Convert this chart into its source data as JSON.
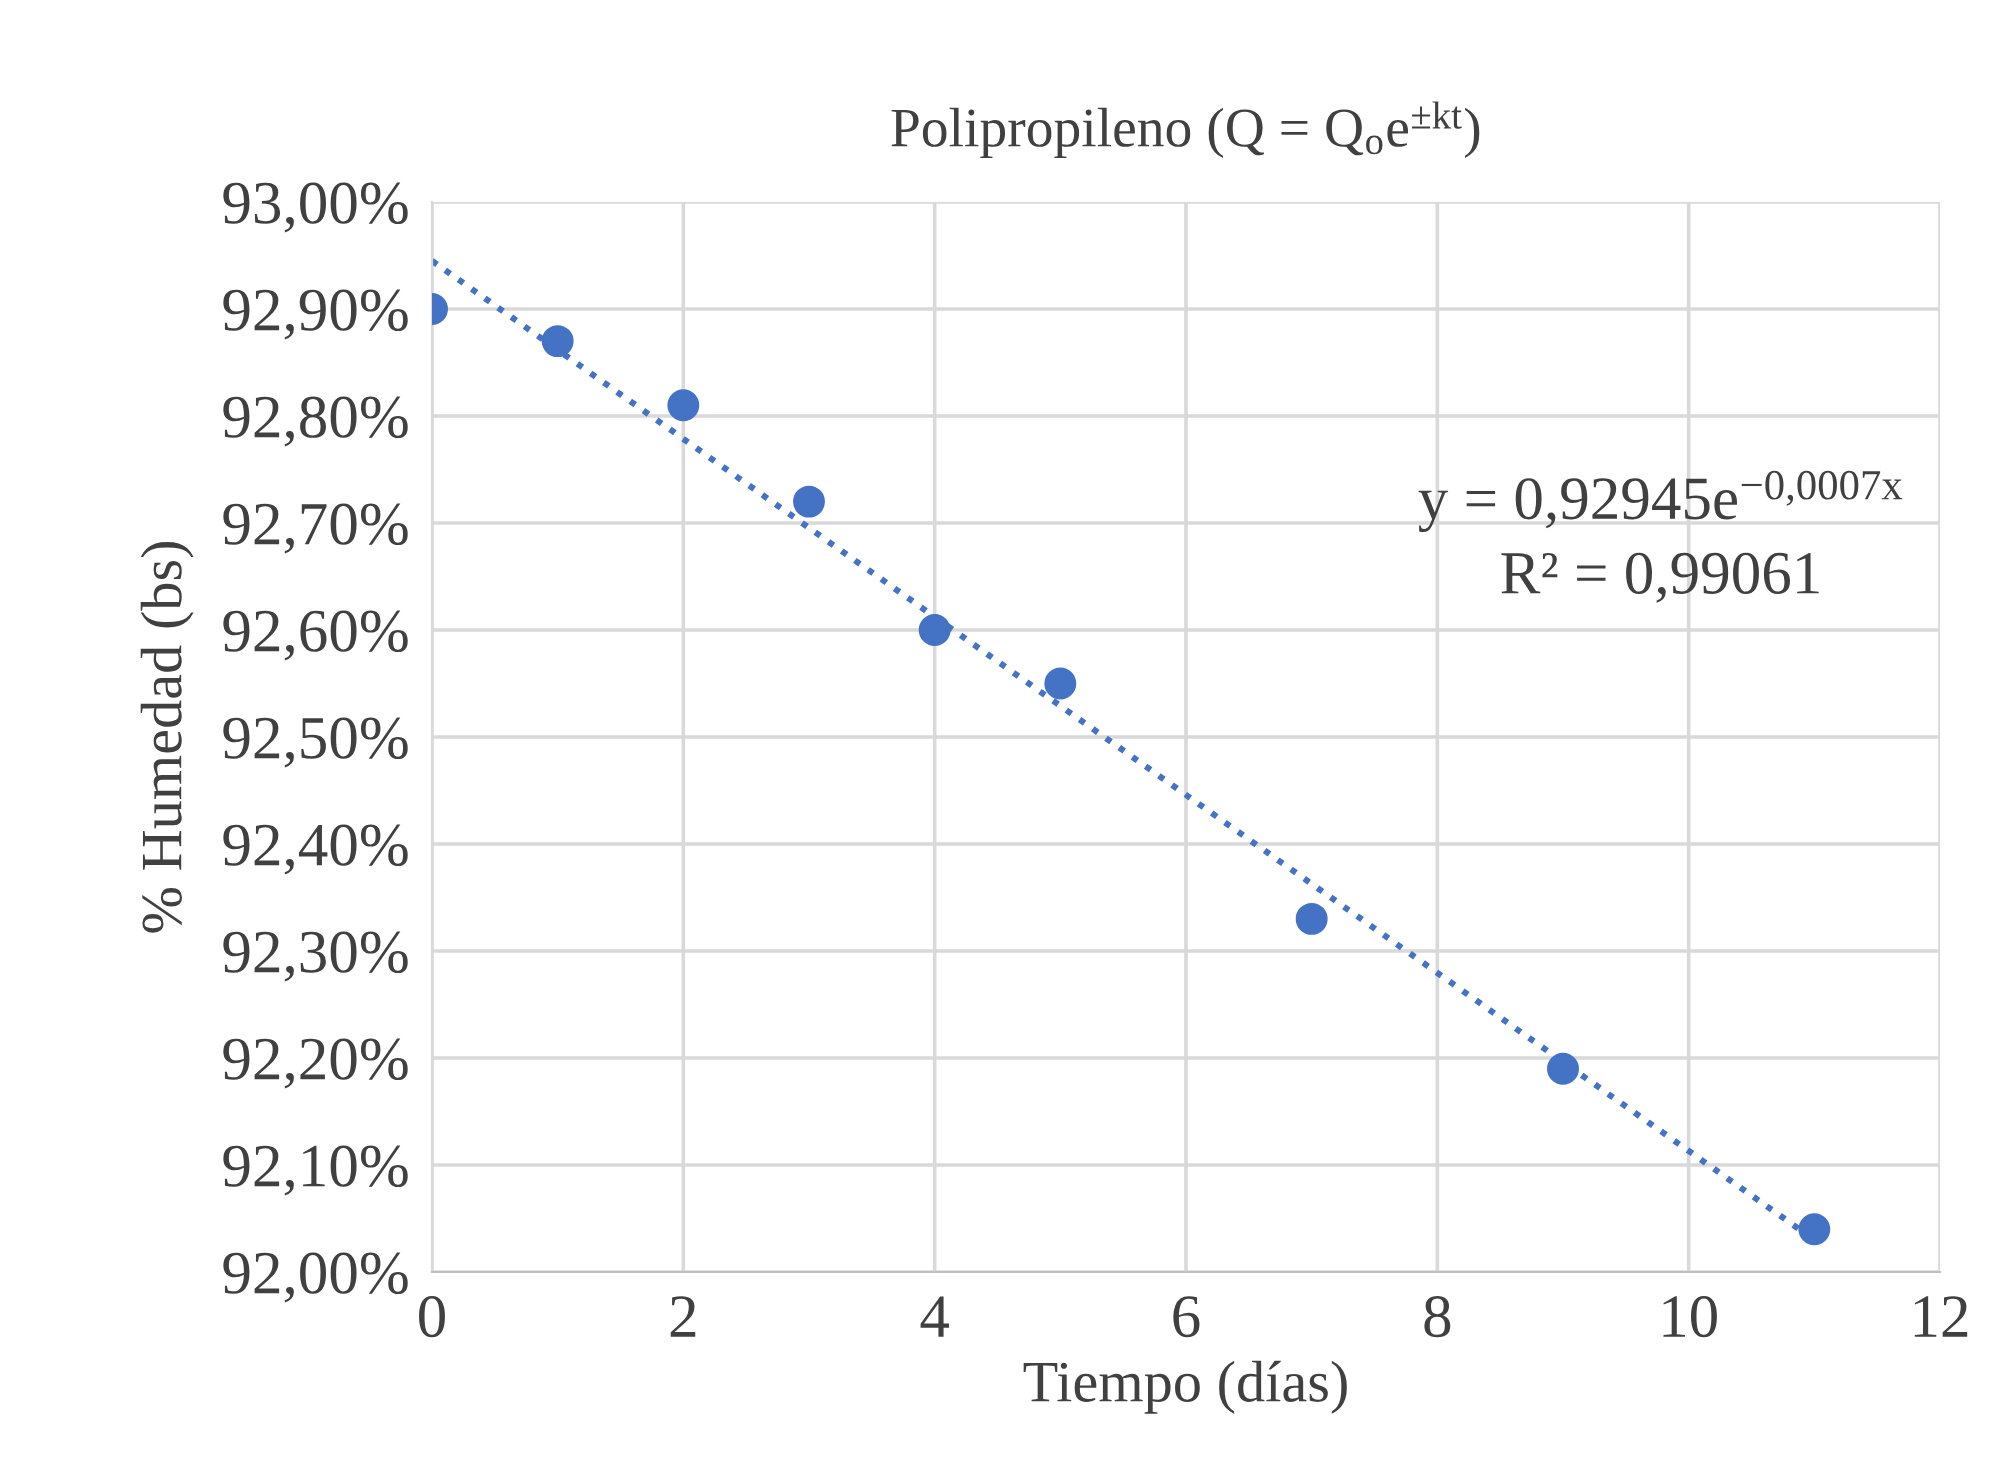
{
  "chart_data": {
    "type": "scatter",
    "title": "Polipropileno (Q = Q$_{o}$e$^{±kt}$)",
    "xlabel": "Tiempo (días)",
    "ylabel": "% Humedad (bs)",
    "series": [
      {
        "color": "#4472c4",
        "marker": "circle",
        "x": [
          0,
          1,
          2,
          3,
          4,
          5,
          7,
          9,
          11
        ],
        "values": [
          92.9,
          92.87,
          92.81,
          92.72,
          92.6,
          92.55,
          92.33,
          92.19,
          92.04
        ]
      },
      {
        "type": "line",
        "color": "#4472c4",
        "line_style": "dotted",
        "marker": "none",
        "x": [
          0,
          11
        ],
        "values": [
          92.945,
          92.03
        ]
      }
    ],
    "annotations": [
      "y = 0,92945e$^{−0,0007x}$",
      "R² = 0,99061"
    ],
    "xlim": [
      0,
      12
    ],
    "xticks": [
      0,
      2,
      4,
      6,
      8,
      10,
      12
    ],
    "ylim": [
      92.0,
      93.0
    ],
    "yticks": [
      {
        "value": 92.0,
        "label": "92,00%"
      },
      {
        "value": 92.1,
        "label": "92,10%"
      },
      {
        "value": 92.2,
        "label": "92,20%"
      },
      {
        "value": 92.3,
        "label": "92,30%"
      },
      {
        "value": 92.4,
        "label": "92,40%"
      },
      {
        "value": 92.5,
        "label": "92,50%"
      },
      {
        "value": 92.6,
        "label": "92,60%"
      },
      {
        "value": 92.7,
        "label": "92,70%"
      },
      {
        "value": 92.8,
        "label": "92,80%"
      },
      {
        "value": 92.9,
        "label": "92,90%"
      },
      {
        "value": 93.0,
        "label": "93,00%"
      }
    ],
    "grid": true,
    "legend": false
  }
}
